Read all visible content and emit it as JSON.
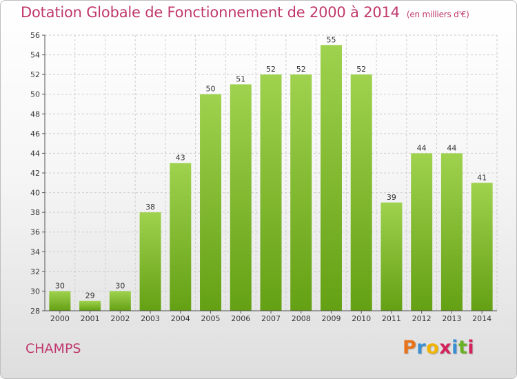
{
  "chart_data": {
    "type": "bar",
    "title": "Dotation Globale de Fonctionnement de 2000 à 2014",
    "subtitle": "(en milliers d'€)",
    "categories": [
      "2000",
      "2001",
      "2002",
      "2003",
      "2004",
      "2005",
      "2006",
      "2007",
      "2008",
      "2009",
      "2010",
      "2011",
      "2012",
      "2013",
      "2014"
    ],
    "values": [
      30,
      29,
      30,
      38,
      43,
      50,
      51,
      52,
      52,
      55,
      52,
      39,
      44,
      44,
      41
    ],
    "ylim": [
      28,
      56
    ],
    "yticks": [
      28,
      30,
      32,
      34,
      36,
      38,
      40,
      42,
      44,
      46,
      48,
      50,
      52,
      54,
      56
    ],
    "grid": true,
    "bar_color": "#8cc63f"
  },
  "place_name": "CHAMPS",
  "logo": {
    "letters": [
      "P",
      "r",
      "o",
      "x",
      "i",
      "t",
      "i"
    ],
    "colors": [
      "#e8731a",
      "#3a8fd4",
      "#f0b400",
      "#d4235a",
      "#3a8fd4",
      "#6ab023",
      "#d4235a"
    ]
  },
  "colors": {
    "title": "#c0386c",
    "grid": "#cccccc",
    "axis": "#555555"
  }
}
